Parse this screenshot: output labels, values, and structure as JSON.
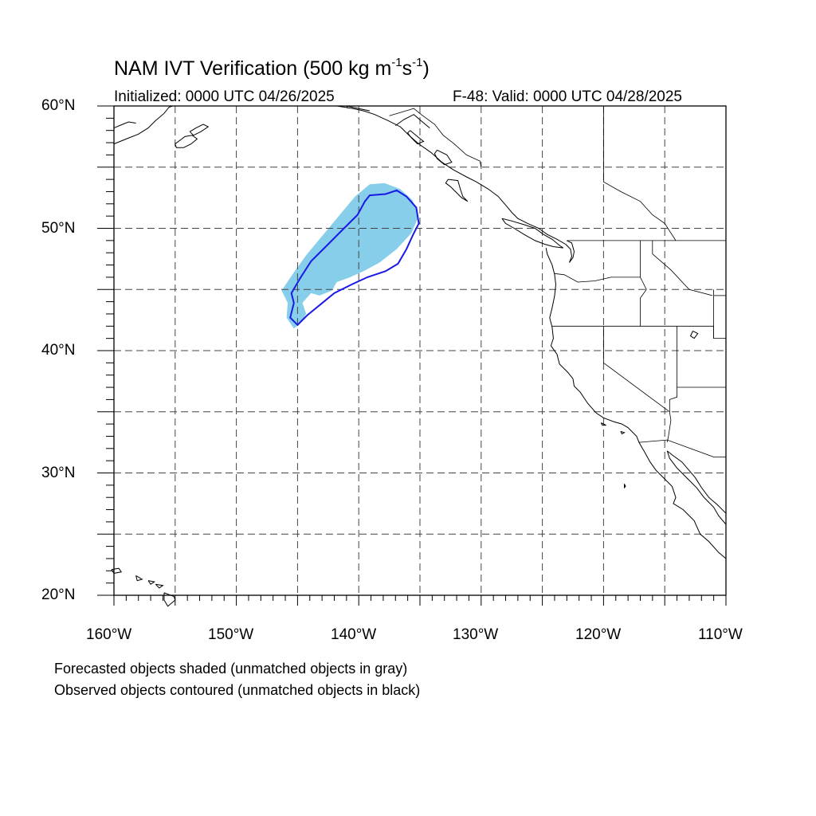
{
  "title": {
    "main": "NAM IVT Verification (500 kg m",
    "exp1": "-1",
    "mid": "s",
    "exp2": "-1",
    "end": ")"
  },
  "subtitle_left": "Initialized: 0000 UTC 04/26/2025",
  "subtitle_right": "F-48: Valid: 0000 UTC 04/28/2025",
  "lat_labels": [
    "60°N",
    "50°N",
    "40°N",
    "30°N",
    "20°N"
  ],
  "lon_labels": [
    "160°W",
    "150°W",
    "140°W",
    "130°W",
    "120°W",
    "110°W"
  ],
  "notes": [
    "Forecasted objects shaded (unmatched objects in gray)",
    "Observed objects contoured (unmatched objects in black)"
  ],
  "map_extent": {
    "lon_min": -160,
    "lon_max": -110,
    "lat_min": 20,
    "lat_max": 60
  },
  "colors": {
    "forecast_shade": "#87ceeb",
    "observed_contour": "#1a1ae6",
    "coastline": "#000000",
    "grid": "#444444"
  },
  "forecast_object": {
    "matched": true,
    "polygon": [
      [
        -146.3,
        44.9
      ],
      [
        -145.3,
        46.4
      ],
      [
        -144.3,
        47.8
      ],
      [
        -143.3,
        49.0
      ],
      [
        -142.3,
        50.2
      ],
      [
        -141.3,
        51.4
      ],
      [
        -140.3,
        52.6
      ],
      [
        -139.1,
        53.6
      ],
      [
        -137.9,
        53.7
      ],
      [
        -136.6,
        53.2
      ],
      [
        -135.6,
        52.3
      ],
      [
        -135.1,
        51.0
      ],
      [
        -135.7,
        49.6
      ],
      [
        -136.9,
        48.3
      ],
      [
        -138.3,
        47.2
      ],
      [
        -139.6,
        46.5
      ],
      [
        -140.7,
        46.0
      ],
      [
        -141.8,
        45.6
      ],
      [
        -142.2,
        44.9
      ],
      [
        -143.2,
        44.5
      ],
      [
        -143.9,
        44.7
      ],
      [
        -144.6,
        43.9
      ],
      [
        -144.3,
        43.0
      ],
      [
        -144.8,
        42.2
      ],
      [
        -145.3,
        41.8
      ],
      [
        -145.9,
        42.7
      ],
      [
        -145.8,
        43.9
      ]
    ]
  },
  "observed_object": {
    "matched": true,
    "polygon": [
      [
        -136.9,
        53.1
      ],
      [
        -136.1,
        52.6
      ],
      [
        -135.3,
        51.7
      ],
      [
        -135.1,
        50.4
      ],
      [
        -135.6,
        49.4
      ],
      [
        -136.1,
        48.3
      ],
      [
        -136.8,
        47.1
      ],
      [
        -137.8,
        46.5
      ],
      [
        -139.3,
        46.0
      ],
      [
        -140.6,
        45.4
      ],
      [
        -142.0,
        44.7
      ],
      [
        -143.1,
        43.8
      ],
      [
        -144.2,
        42.9
      ],
      [
        -145.0,
        42.1
      ],
      [
        -145.6,
        42.7
      ],
      [
        -145.3,
        43.9
      ],
      [
        -145.5,
        44.7
      ],
      [
        -144.8,
        45.9
      ],
      [
        -143.9,
        47.3
      ],
      [
        -142.6,
        48.6
      ],
      [
        -141.3,
        49.9
      ],
      [
        -140.1,
        51.1
      ],
      [
        -139.5,
        52.2
      ],
      [
        -139.1,
        52.7
      ],
      [
        -137.8,
        52.8
      ]
    ]
  }
}
